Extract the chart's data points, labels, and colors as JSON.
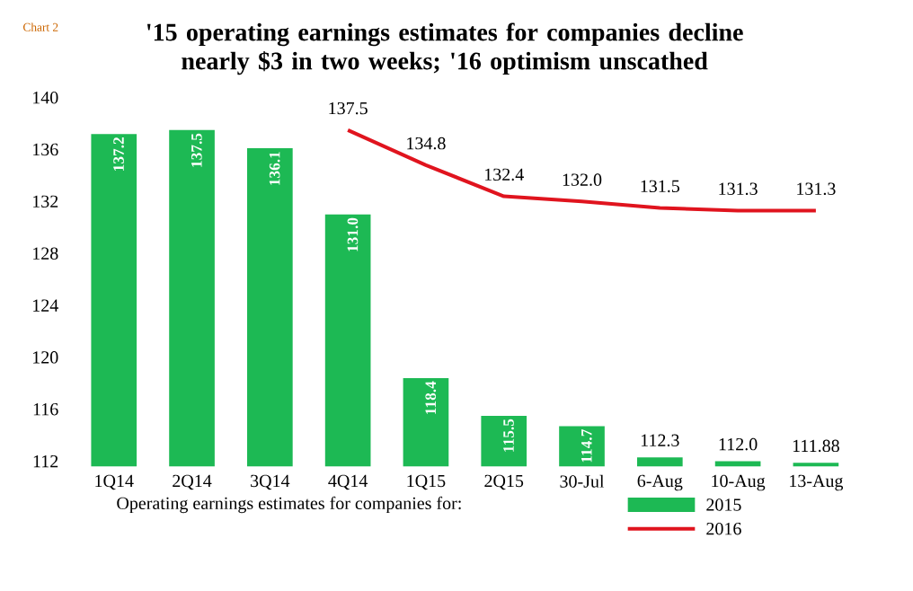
{
  "chart_data": {
    "type": "bar",
    "title": "'15 operating earnings estimates for companies decline nearly $3 in two weeks; '16 optimism unscathed",
    "annotations": [
      "Chart 2"
    ],
    "legend_title": "Operating earnings estimates for companies for:",
    "categories": [
      "1Q14",
      "2Q14",
      "3Q14",
      "4Q14",
      "1Q15",
      "2Q15",
      "30-Jul",
      "6-Aug",
      "10-Aug",
      "13-Aug"
    ],
    "series": [
      {
        "name": "2015",
        "color": "#1db954",
        "values": [
          137.2,
          137.5,
          136.1,
          131.0,
          118.4,
          115.5,
          114.7,
          112.3,
          112.0,
          111.88
        ],
        "value_labels": [
          "137.2",
          "137.5",
          "136.1",
          "131.0",
          "118.4",
          "115.5",
          "114.7",
          "112.3",
          "112.0",
          "111.88"
        ]
      },
      {
        "name": "2016",
        "type": "line",
        "color": "#e0141e",
        "values": [
          null,
          null,
          null,
          137.5,
          134.8,
          132.4,
          132.0,
          131.5,
          131.3,
          131.3
        ],
        "value_labels": [
          null,
          null,
          null,
          "137.5",
          "134.8",
          "132.4",
          "132.0",
          "131.5",
          "131.3",
          "131.3"
        ]
      }
    ],
    "ylim": [
      111.6,
      140
    ],
    "yticks": [
      112,
      116,
      120,
      124,
      128,
      132,
      136,
      140
    ],
    "legend": "bottom"
  }
}
